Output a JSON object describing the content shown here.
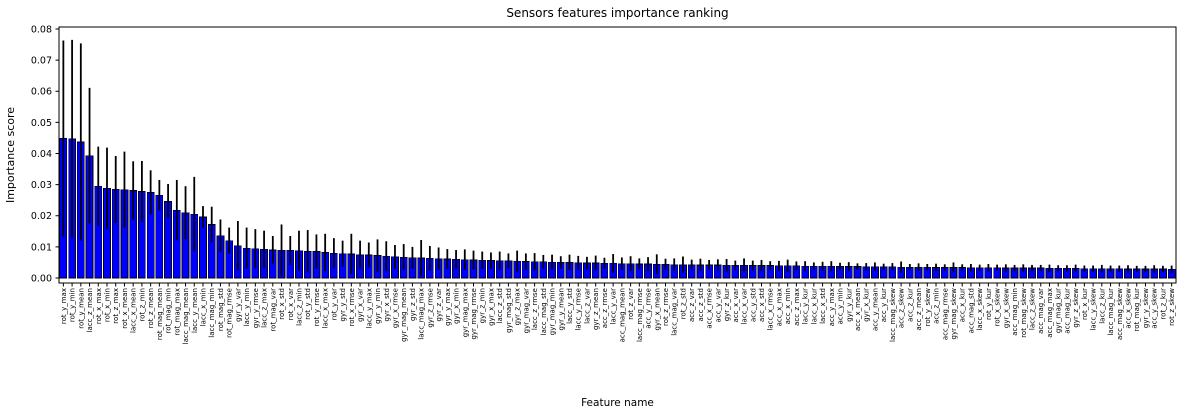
{
  "chart_data": {
    "type": "bar",
    "title": "Sensors features importance ranking",
    "xlabel": "Feature name",
    "ylabel": "Importance score",
    "ylim": [
      0,
      0.08
    ],
    "ytick_step": 0.01,
    "ytick_labels": [
      "0.00",
      "0.01",
      "0.02",
      "0.03",
      "0.04",
      "0.05",
      "0.06",
      "0.07",
      "0.08"
    ],
    "grid": "off",
    "legend": "none",
    "bar_color": "#0000ff",
    "bar_edge_color": "#000000",
    "error_color": "#000000",
    "categories": [
      "rot_y_max",
      "rot_y_min",
      "rot_y_mean",
      "lacc_z_mean",
      "rot_x_max",
      "rot_x_min",
      "rot_z_max",
      "rot_x_mean",
      "lacc_x_mean",
      "rot_z_min",
      "rot_z_mean",
      "rot_mag_mean",
      "rot_mag_min",
      "rot_mag_max",
      "lacc_mag_mean",
      "lacc_y_mean",
      "lacc_x_min",
      "lacc_mag_min",
      "rot_mag_std",
      "rot_mag_rmse",
      "gyr_y_var",
      "lacc_y_min",
      "gyr_y_rmse",
      "lacc_z_max",
      "rot_mag_var",
      "rot_x_std",
      "rot_x_var",
      "lacc_z_min",
      "rot_y_std",
      "rot_y_rmse",
      "lacc_x_max",
      "rot_y_var",
      "gyr_y_std",
      "rot_x_rmse",
      "gyr_x_var",
      "lacc_y_max",
      "gyr_y_min",
      "gyr_x_std",
      "gyr_x_rmse",
      "gyr_mag_mean",
      "gyr_z_std",
      "lacc_mag_max",
      "gyr_z_rmse",
      "gyr_z_var",
      "gyr_y_max",
      "gyr_x_min",
      "gyr_mag_max",
      "gyr_mag_rmse",
      "gyr_z_min",
      "gyr_x_max",
      "lacc_z_std",
      "gyr_mag_std",
      "gyr_z_max",
      "gyr_mag_var",
      "lacc_z_rmse",
      "lacc_mag_std",
      "gyr_mag_min",
      "gyr_y_mean",
      "lacc_y_std",
      "lacc_y_rmse",
      "lacc_z_var",
      "gyr_z_mean",
      "acc_z_rmse",
      "lacc_y_var",
      "acc_mag_mean",
      "rot_z_var",
      "lacc_mag_rmse",
      "acc_y_rmse",
      "gyr_x_mean",
      "rot_z_rmse",
      "lacc_mag_var",
      "rot_z_std",
      "acc_z_var",
      "acc_z_std",
      "acc_x_rmse",
      "acc_y_var",
      "gyr_z_kur",
      "acc_x_var",
      "lacc_x_var",
      "acc_y_std",
      "acc_x_std",
      "lacc_x_rmse",
      "acc_x_max",
      "acc_x_min",
      "acc_z_max",
      "lacc_y_kur",
      "lacc_x_kur",
      "lacc_x_std",
      "acc_y_max",
      "acc_y_min",
      "gyr_y_kur",
      "acc_x_mean",
      "gyr_x_kur",
      "acc_y_mean",
      "acc_y_kur",
      "lacc_mag_skew",
      "acc_z_skew",
      "acc_z_kur",
      "acc_z_mean",
      "rot_y_skew",
      "acc_z_min",
      "acc_mag_rmse",
      "gyr_mag_skew",
      "acc_x_kur",
      "acc_mag_std",
      "lacc_x_skew",
      "rot_y_kur",
      "rot_x_skew",
      "gyr_x_skew",
      "acc_mag_min",
      "rot_mag_skew",
      "lacc_z_skew",
      "acc_mag_var",
      "acc_mag_max",
      "gyr_mag_kur",
      "acc_mag_kur",
      "gyr_z_skew",
      "rot_x_kur",
      "lacc_y_skew",
      "lacc_z_kur",
      "lacc_mag_kur",
      "acc_mag_skew",
      "acc_x_skew",
      "rot_mag_kur",
      "gyr_y_skew",
      "acc_y_skew",
      "rot_z_kur",
      "rot_z_skew"
    ],
    "values": [
      0.0448,
      0.0447,
      0.0437,
      0.0393,
      0.0295,
      0.0288,
      0.0285,
      0.0284,
      0.0281,
      0.0278,
      0.0275,
      0.0266,
      0.0247,
      0.0218,
      0.021,
      0.0205,
      0.0196,
      0.0172,
      0.0136,
      0.012,
      0.0104,
      0.0096,
      0.0094,
      0.0092,
      0.009,
      0.0089,
      0.0089,
      0.0088,
      0.0086,
      0.0085,
      0.0082,
      0.008,
      0.0078,
      0.0077,
      0.0075,
      0.0074,
      0.0072,
      0.007,
      0.0068,
      0.0067,
      0.0065,
      0.0064,
      0.0063,
      0.0062,
      0.0061,
      0.006,
      0.0059,
      0.0058,
      0.0057,
      0.0056,
      0.0055,
      0.0055,
      0.0054,
      0.0053,
      0.0052,
      0.0052,
      0.0051,
      0.005,
      0.005,
      0.0049,
      0.0048,
      0.0048,
      0.0047,
      0.0047,
      0.0046,
      0.0046,
      0.0045,
      0.0045,
      0.0044,
      0.0044,
      0.0043,
      0.0043,
      0.0043,
      0.0042,
      0.0042,
      0.0042,
      0.0041,
      0.0041,
      0.0041,
      0.004,
      0.004,
      0.004,
      0.0039,
      0.0039,
      0.0039,
      0.0038,
      0.0038,
      0.0038,
      0.0038,
      0.0037,
      0.0037,
      0.0037,
      0.0036,
      0.0036,
      0.0036,
      0.0036,
      0.0035,
      0.0035,
      0.0035,
      0.0035,
      0.0034,
      0.0034,
      0.0034,
      0.0034,
      0.0033,
      0.0033,
      0.0033,
      0.0033,
      0.0032,
      0.0032,
      0.0032,
      0.0032,
      0.0032,
      0.0031,
      0.0031,
      0.0031,
      0.0031,
      0.003,
      0.003,
      0.003,
      0.003,
      0.003,
      0.0029,
      0.0029,
      0.0029,
      0.0029,
      0.0029,
      0.0028
    ],
    "errors": [
      0.0315,
      0.0318,
      0.0317,
      0.0218,
      0.0127,
      0.0131,
      0.0107,
      0.0122,
      0.0094,
      0.0098,
      0.0071,
      0.0049,
      0.0055,
      0.0097,
      0.0085,
      0.012,
      0.0035,
      0.0057,
      0.0052,
      0.0042,
      0.0079,
      0.0066,
      0.0063,
      0.006,
      0.0045,
      0.0083,
      0.0046,
      0.0064,
      0.0068,
      0.0055,
      0.006,
      0.0048,
      0.0042,
      0.0065,
      0.0045,
      0.004,
      0.0052,
      0.0048,
      0.0038,
      0.0042,
      0.0035,
      0.0058,
      0.004,
      0.0036,
      0.0032,
      0.003,
      0.0033,
      0.003,
      0.0028,
      0.0026,
      0.003,
      0.0024,
      0.0034,
      0.0026,
      0.0028,
      0.0022,
      0.0024,
      0.002,
      0.0025,
      0.0022,
      0.002,
      0.0024,
      0.0018,
      0.003,
      0.002,
      0.0024,
      0.0018,
      0.0022,
      0.0032,
      0.0018,
      0.002,
      0.0026,
      0.0016,
      0.002,
      0.0016,
      0.0018,
      0.002,
      0.0015,
      0.0022,
      0.0016,
      0.0018,
      0.0014,
      0.0016,
      0.002,
      0.0014,
      0.0016,
      0.0012,
      0.0014,
      0.0016,
      0.0012,
      0.0014,
      0.001,
      0.0012,
      0.0014,
      0.001,
      0.0012,
      0.0018,
      0.001,
      0.0012,
      0.001,
      0.0012,
      0.001,
      0.0016,
      0.001,
      0.0012,
      0.001,
      0.0012,
      0.001,
      0.0012,
      0.001,
      0.0012,
      0.001,
      0.001,
      0.0012,
      0.001,
      0.001,
      0.0012,
      0.001,
      0.001,
      0.0012,
      0.001,
      0.001,
      0.0012,
      0.001,
      0.001,
      0.0012,
      0.001,
      0.0012
    ]
  }
}
